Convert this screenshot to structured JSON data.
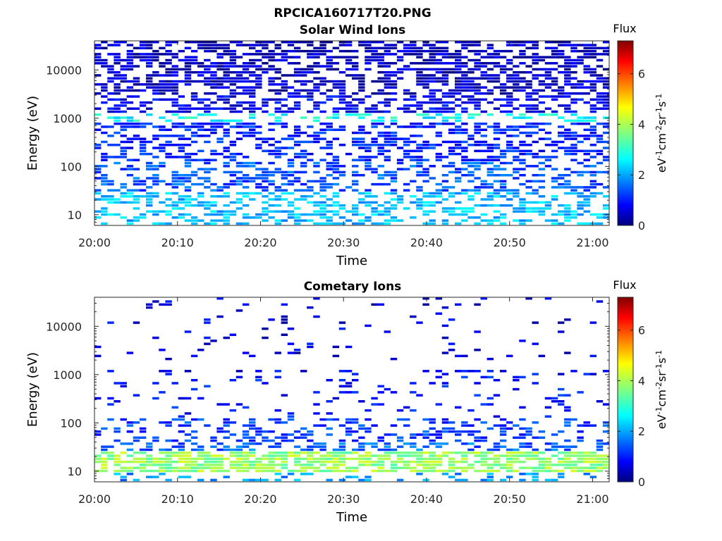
{
  "figure_title": "RPCICA160717T20.PNG",
  "colorbar": {
    "title": "Flux",
    "label_base": "eV",
    "ticks": [
      "0",
      "2",
      "4",
      "6"
    ],
    "range": [
      0,
      7.3
    ]
  },
  "panels": [
    {
      "title": "Solar Wind Ions",
      "xlabel": "Time",
      "ylabel": "Energy (eV)"
    },
    {
      "title": "Cometary Ions",
      "xlabel": "Time",
      "ylabel": "Energy (eV)"
    }
  ],
  "chart_data": [
    {
      "type": "heatmap",
      "title": "Solar Wind Ions",
      "xlabel": "Time",
      "ylabel": "Energy (eV)",
      "x_ticks": [
        "20:00",
        "20:10",
        "20:20",
        "20:30",
        "20:40",
        "20:50",
        "21:00"
      ],
      "y_ticks": [
        "10",
        "100",
        "1000",
        "10000"
      ],
      "y_scale": "log",
      "ylim": [
        6,
        40000
      ],
      "z_label": "Flux (eV^-1 cm^-2 sr^-1 s^-1)",
      "zlim": [
        0,
        7.3
      ],
      "bands": [
        {
          "energy_range": [
            3000,
            40000
          ],
          "level": 0.5,
          "occupancy": 0.55
        },
        {
          "energy_range": [
            1200,
            3000
          ],
          "level": 0.8,
          "occupancy": 0.5
        },
        {
          "energy_range": [
            800,
            1200
          ],
          "level": 2.8,
          "occupancy": 0.3
        },
        {
          "energy_range": [
            120,
            800
          ],
          "level": 1.1,
          "occupancy": 0.45
        },
        {
          "energy_range": [
            30,
            120
          ],
          "level": 1.5,
          "occupancy": 0.4
        },
        {
          "energy_range": [
            6,
            30
          ],
          "level": 2.3,
          "occupancy": 0.45
        }
      ]
    },
    {
      "type": "heatmap",
      "title": "Cometary Ions",
      "xlabel": "Time",
      "ylabel": "Energy (eV)",
      "x_ticks": [
        "20:00",
        "20:10",
        "20:20",
        "20:30",
        "20:40",
        "20:50",
        "21:00"
      ],
      "y_ticks": [
        "10",
        "100",
        "1000",
        "10000"
      ],
      "y_scale": "log",
      "ylim": [
        6,
        40000
      ],
      "z_label": "Flux (eV^-1 cm^-2 sr^-1 s^-1)",
      "zlim": [
        0,
        7.3
      ],
      "bands": [
        {
          "energy_range": [
            2000,
            40000
          ],
          "level": 0.7,
          "occupancy": 0.05
        },
        {
          "energy_range": [
            1000,
            1300
          ],
          "level": 0.8,
          "occupancy": 0.25
        },
        {
          "energy_range": [
            120,
            1000
          ],
          "level": 1.0,
          "occupancy": 0.1
        },
        {
          "energy_range": [
            40,
            120
          ],
          "level": 1.3,
          "occupancy": 0.3
        },
        {
          "energy_range": [
            25,
            40
          ],
          "level": 1.6,
          "occupancy": 0.4
        },
        {
          "energy_range": [
            9,
            25
          ],
          "level": 3.8,
          "occupancy": 0.75
        },
        {
          "energy_range": [
            6,
            9
          ],
          "level": 2.0,
          "occupancy": 0.3
        }
      ]
    }
  ]
}
